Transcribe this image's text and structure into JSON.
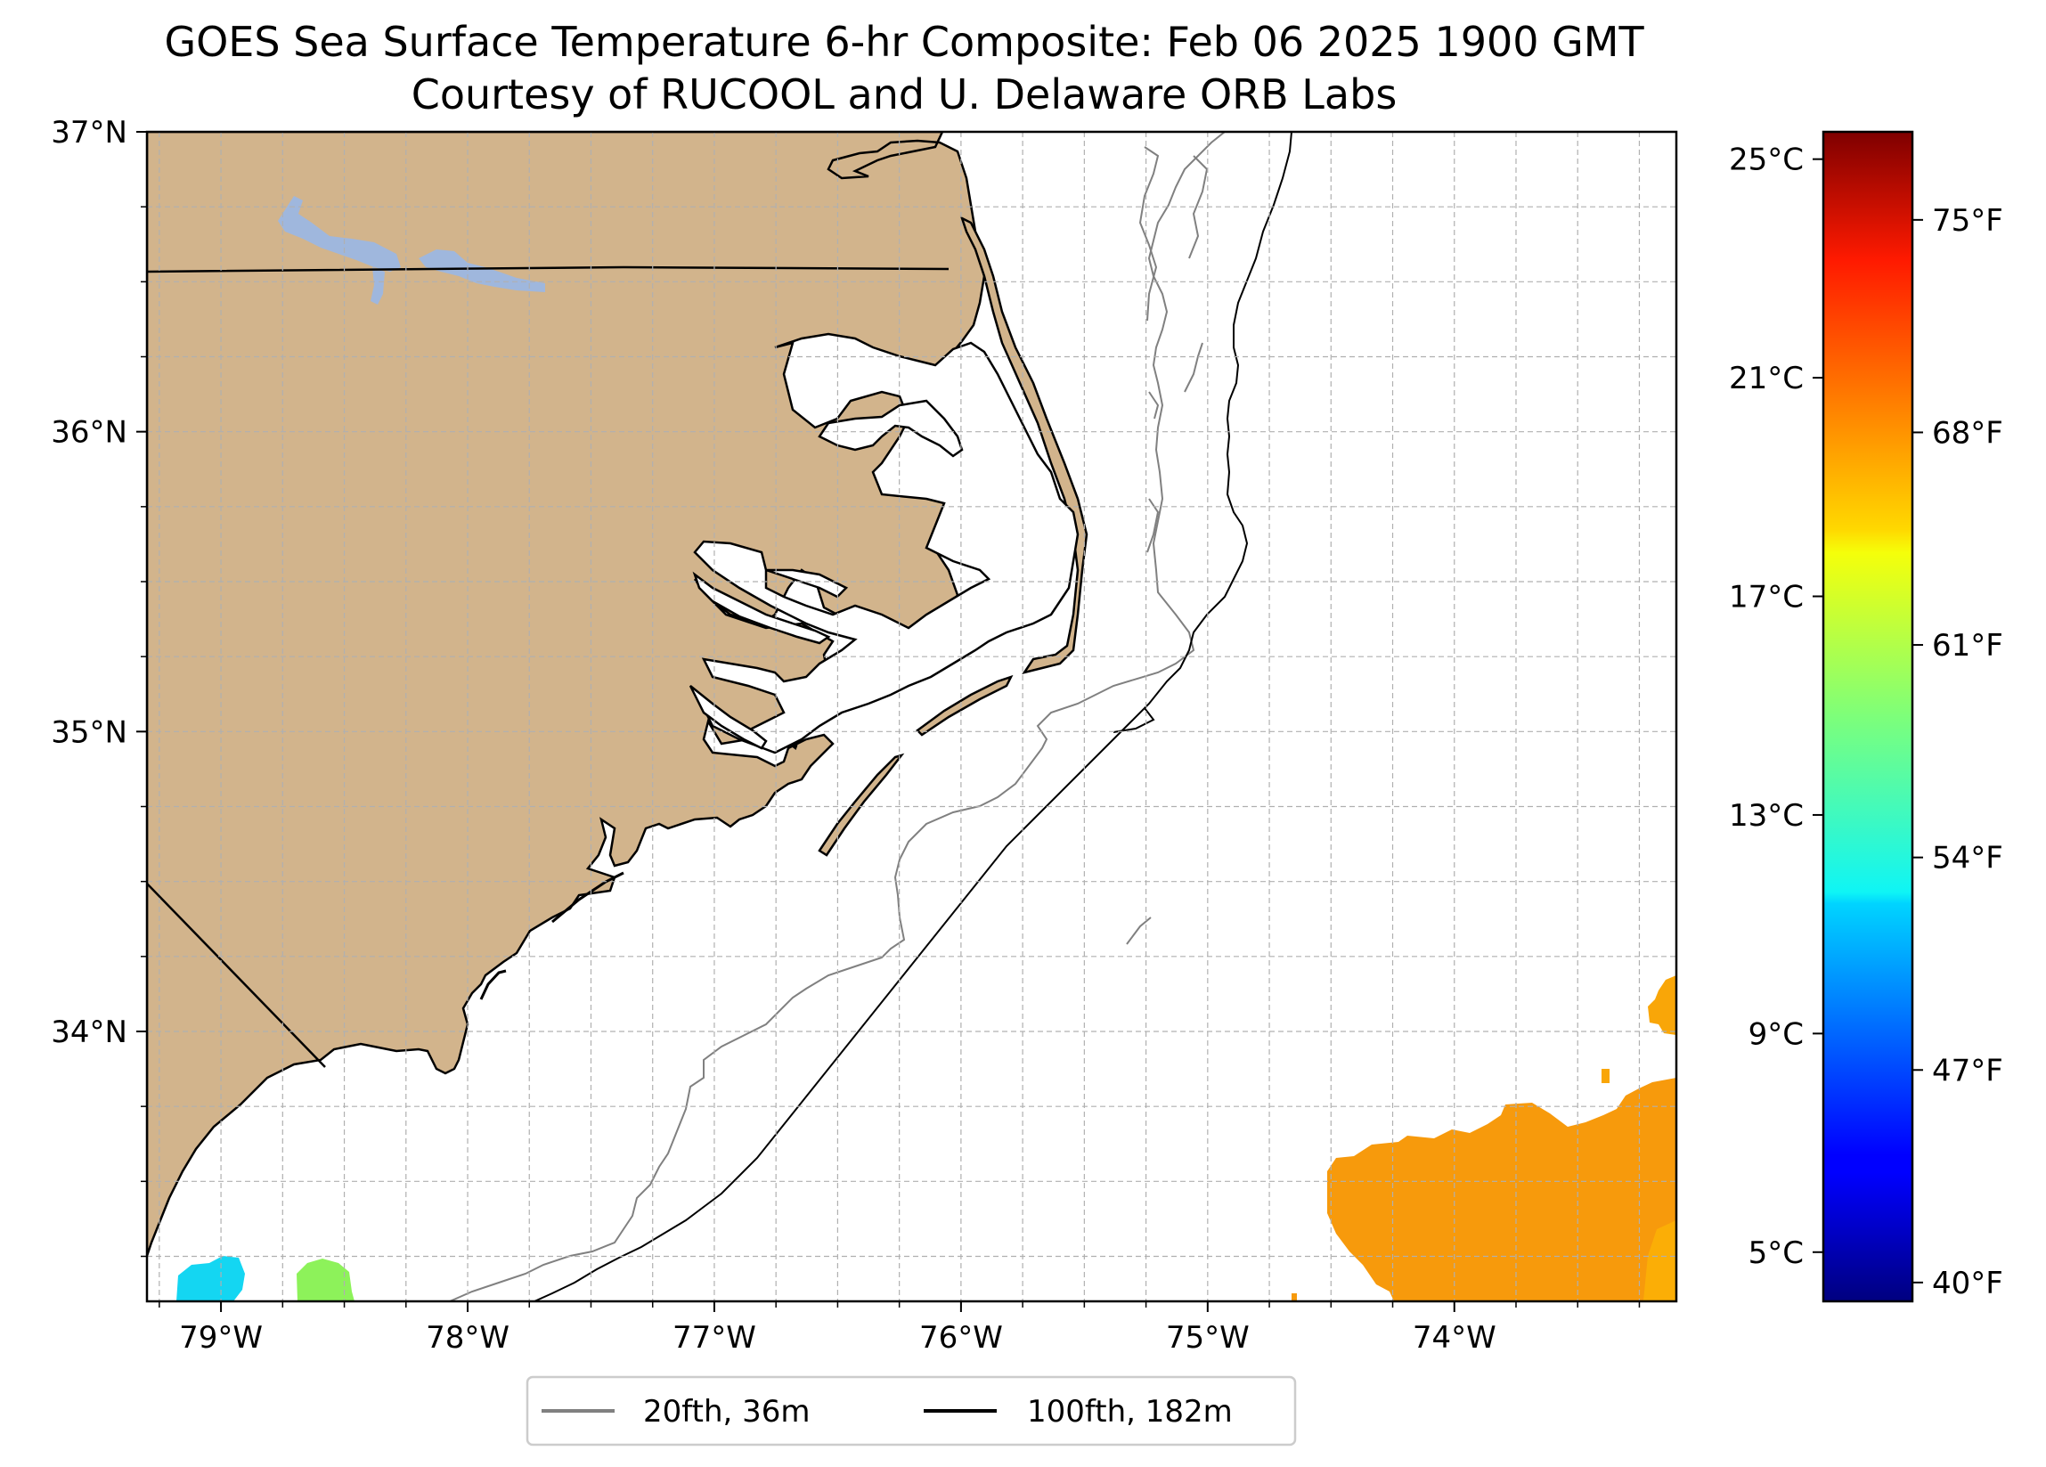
{
  "title": {
    "line1": "GOES Sea Surface Temperature 6-hr Composite: Feb 06 2025 1900 GMT",
    "line2": "Courtesy of RUCOOL and U. Delaware ORB Labs"
  },
  "map": {
    "lon_range": [
      -79.3,
      -73.1
    ],
    "lat_range": [
      33.1,
      37.0
    ],
    "gridlines": true,
    "land_color": "#d2b48c",
    "lake_color": "#9fb7dd",
    "coast_color": "#000000",
    "x_ticks": [
      {
        "value": -79,
        "label": "79°W"
      },
      {
        "value": -78,
        "label": "78°W"
      },
      {
        "value": -77,
        "label": "77°W"
      },
      {
        "value": -76,
        "label": "76°W"
      },
      {
        "value": -75,
        "label": "75°W"
      },
      {
        "value": -74,
        "label": "74°W"
      }
    ],
    "y_ticks": [
      {
        "value": 37,
        "label": "37°N"
      },
      {
        "value": 36,
        "label": "36°N"
      },
      {
        "value": 35,
        "label": "35°N"
      },
      {
        "value": 34,
        "label": "34°N"
      }
    ]
  },
  "colorbar": {
    "colormap": "jet",
    "range_c": [
      4.1,
      25.5
    ],
    "celsius_ticks": [
      {
        "value": 25,
        "label": "25°C"
      },
      {
        "value": 21,
        "label": "21°C"
      },
      {
        "value": 17,
        "label": "17°C"
      },
      {
        "value": 13,
        "label": "13°C"
      },
      {
        "value": 9,
        "label": "9°C"
      },
      {
        "value": 5,
        "label": "5°C"
      }
    ],
    "fahrenheit_ticks": [
      {
        "value": 75,
        "label": "75°F"
      },
      {
        "value": 68,
        "label": "68°F"
      },
      {
        "value": 61,
        "label": "61°F"
      },
      {
        "value": 54,
        "label": "54°F"
      },
      {
        "value": 47,
        "label": "47°F"
      },
      {
        "value": 40,
        "label": "40°F"
      }
    ]
  },
  "sst_patches": [
    {
      "name": "gulf-stream-warm-water",
      "temp_c": 20.5,
      "color": "#f79a0c"
    },
    {
      "name": "northeast-warm-water",
      "temp_c": 20.5,
      "color": "#f9a608"
    },
    {
      "name": "cold-patch-west",
      "temp_c": 11.5,
      "color": "#14d6f2"
    },
    {
      "name": "cool-patch-east",
      "temp_c": 15.5,
      "color": "#8df25a"
    }
  ],
  "legend": {
    "items": [
      {
        "label": "20fth, 36m",
        "color": "#808080"
      },
      {
        "label": "100fth, 182m",
        "color": "#000000"
      }
    ]
  }
}
